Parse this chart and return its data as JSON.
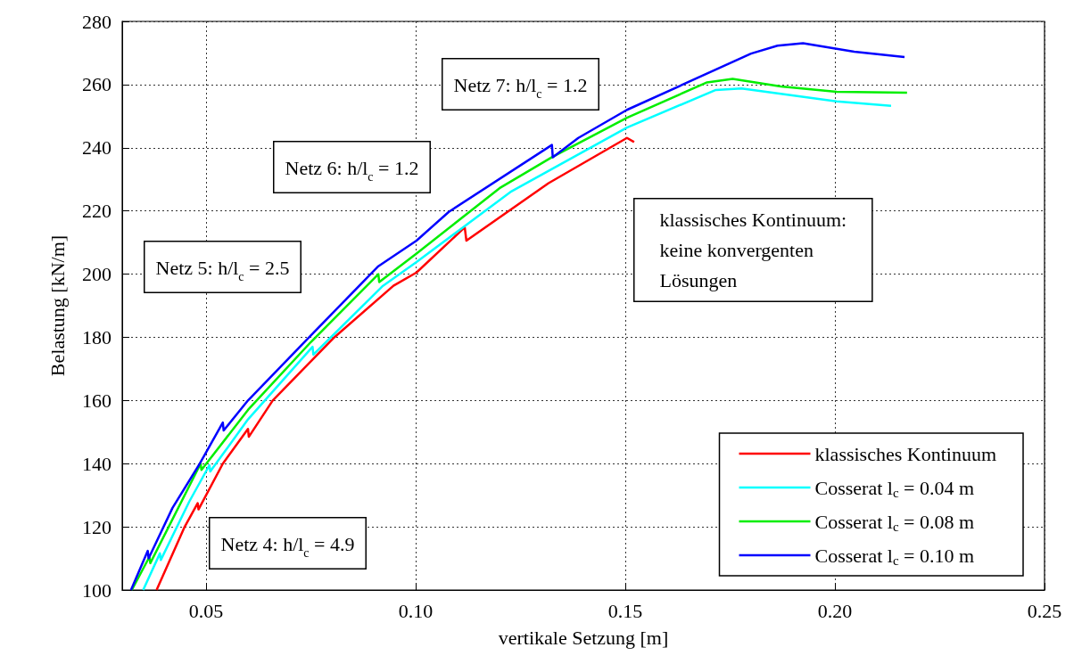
{
  "chart_data": {
    "type": "line",
    "xlabel": "vertikale Setzung [m]",
    "ylabel": "Belastung [kN/m]",
    "xlim": [
      0.03,
      0.25
    ],
    "xticks": [
      0.05,
      {
        "value": 0.1,
        "label": "0.10"
      },
      0.15,
      {
        "value": 0.2,
        "label": "0.20"
      },
      0.25
    ],
    "ylim": [
      100,
      280
    ],
    "yticks": [
      100,
      120,
      140,
      160,
      180,
      200,
      220,
      240,
      260,
      280
    ],
    "grid": true,
    "legend": "bottom right",
    "line_style": "solid",
    "annotations": [
      "Netz 4: h/l$_{c}$ = 4.9",
      "Netz 5: h/l$_{c}$ = 2.5",
      "Netz 6: h/l$_{c}$ = 1.2",
      "Netz 7: h/l$_{c}$ = 1.2",
      "klassisches Kontinuum:\nkeine konvergenten\nLösungen"
    ],
    "series": [
      {
        "name": "klassisches Kontinuum",
        "color": "#ff0000",
        "x": [
          0.0382,
          0.0449,
          0.048,
          0.0482,
          0.054,
          0.06,
          0.0602,
          0.0659,
          0.0806,
          0.0947,
          0.1002,
          0.1117,
          0.1121,
          0.1317,
          0.1504,
          0.1521
        ],
        "values": [
          100,
          120,
          127.5,
          125.5,
          140,
          151,
          148.5,
          160,
          180,
          196.3,
          200.5,
          214.8,
          210.6,
          228.8,
          243.1,
          241.8
        ]
      },
      {
        "name": "Cosserat l$_{c}$ = 0.04 m",
        "color": "#00ffff",
        "x": [
          0.035,
          0.039,
          0.0392,
          0.046,
          0.0508,
          0.051,
          0.06,
          0.0754,
          0.0756,
          0.0922,
          0.1002,
          0.1226,
          0.1504,
          0.1716,
          0.1777,
          0.2004,
          0.2134
        ],
        "values": [
          100,
          111.6,
          109.5,
          128,
          139.5,
          137.5,
          154,
          177,
          174.5,
          196.3,
          203.8,
          226,
          246.4,
          258.3,
          258.8,
          254.7,
          253.3
        ]
      },
      {
        "name": "Cosserat l$_{c}$ = 0.08 m",
        "color": "#00ee00",
        "x": [
          0.0323,
          0.0365,
          0.0367,
          0.0487,
          0.0489,
          0.06,
          0.075,
          0.0911,
          0.0913,
          0.1002,
          0.12,
          0.1325,
          0.1504,
          0.1695,
          0.1756,
          0.1871,
          0.2004,
          0.2172
        ],
        "values": [
          100,
          110.5,
          108.5,
          140,
          138,
          157,
          178.5,
          200,
          197.5,
          206.5,
          227.2,
          237,
          249.5,
          260.7,
          261.8,
          259.4,
          257.7,
          257.4
        ]
      },
      {
        "name": "Cosserat l$_{c}$ = 0.10 m",
        "color": "#0000ff",
        "x": [
          0.0321,
          0.0361,
          0.0363,
          0.042,
          0.0485,
          0.054,
          0.0542,
          0.06,
          0.075,
          0.0911,
          0.1002,
          0.1079,
          0.1325,
          0.1327,
          0.1388,
          0.1504,
          0.18,
          0.1863,
          0.1924,
          0.2046,
          0.2166
        ],
        "values": [
          100,
          112.4,
          110,
          126,
          140,
          153,
          150.5,
          160,
          180.6,
          202.5,
          210.6,
          219.7,
          240.9,
          237,
          243.1,
          252,
          269.8,
          272.3,
          273.1,
          270.4,
          268.7
        ]
      }
    ]
  }
}
